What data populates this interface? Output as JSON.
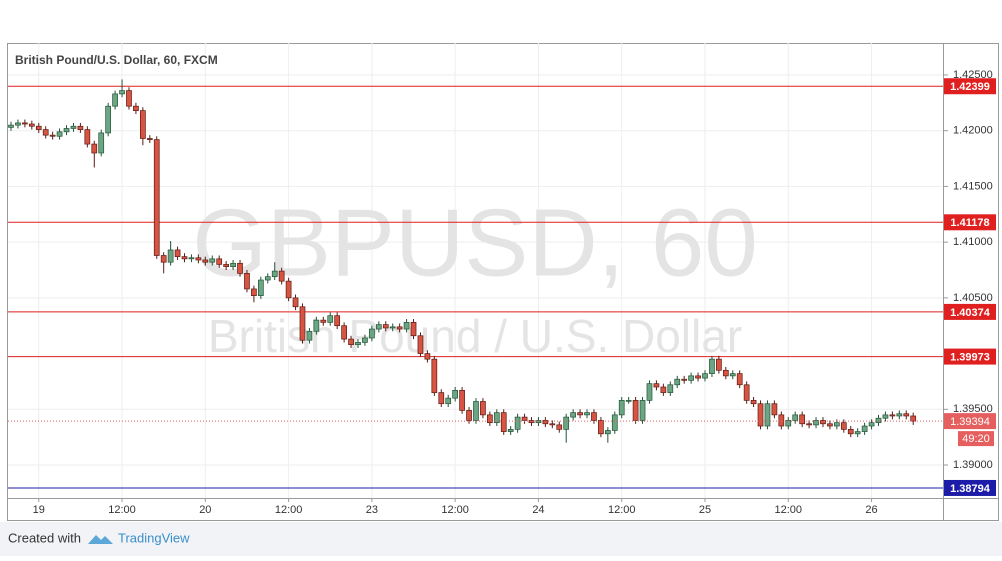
{
  "chart_data": {
    "type": "candlestick",
    "title": "British Pound/U.S. Dollar, 60, FXCM",
    "watermark": "GBPUSD, 60",
    "watermark_subtitle": "British Pound / U.S. Dollar",
    "categories": [
      null,
      null,
      null,
      null,
      "19",
      null,
      null,
      null,
      null,
      null,
      null,
      null,
      null,
      null,
      null,
      null,
      "12:00",
      null,
      null,
      null,
      null,
      null,
      null,
      null,
      null,
      null,
      null,
      null,
      "20",
      null,
      null,
      null,
      null,
      null,
      null,
      null,
      null,
      null,
      null,
      null,
      "12:00",
      null,
      null,
      null,
      null,
      null,
      null,
      null,
      null,
      null,
      null,
      null,
      "23",
      null,
      null,
      null,
      null,
      null,
      null,
      null,
      null,
      null,
      null,
      null,
      "12:00",
      null,
      null,
      null,
      null,
      null,
      null,
      null,
      null,
      null,
      null,
      null,
      "24",
      null,
      null,
      null,
      null,
      null,
      null,
      null,
      null,
      null,
      null,
      null,
      "12:00",
      null,
      null,
      null,
      null,
      null,
      null,
      null,
      null,
      null,
      null,
      null,
      "25",
      null,
      null,
      null,
      null,
      null,
      null,
      null,
      null,
      null,
      null,
      null,
      "12:00",
      null,
      null,
      null,
      null,
      null,
      null,
      null,
      null,
      null,
      null,
      null,
      "26",
      null,
      null,
      null,
      null,
      null,
      null
    ],
    "open": [
      1.4203,
      1.4205,
      1.4207,
      1.4206,
      1.4204,
      1.4201,
      1.4196,
      1.4195,
      1.4199,
      1.4202,
      1.4204,
      1.4201,
      1.4188,
      1.418,
      1.4198,
      1.4222,
      1.4233,
      1.4236,
      1.4222,
      1.4218,
      1.4193,
      1.4192,
      1.4088,
      1.4082,
      1.4093,
      1.4087,
      1.4085,
      1.4086,
      1.4084,
      1.4082,
      1.4085,
      1.408,
      1.4078,
      1.4081,
      1.4072,
      1.4058,
      1.4052,
      1.4066,
      1.4069,
      1.4074,
      1.4065,
      1.405,
      1.4042,
      1.4012,
      1.402,
      1.403,
      1.4028,
      1.4034,
      1.4025,
      1.4013,
      1.4008,
      1.401,
      1.4014,
      1.4022,
      1.4026,
      1.4023,
      1.4024,
      1.4022,
      1.4028,
      1.4016,
      1.4,
      1.3995,
      1.3965,
      1.3955,
      1.396,
      1.3967,
      1.3949,
      1.394,
      1.3957,
      1.3945,
      1.3938,
      1.3947,
      1.393,
      1.3932,
      1.3943,
      1.394,
      1.3938,
      1.394,
      1.3937,
      1.3936,
      1.3932,
      1.3943,
      1.3947,
      1.3945,
      1.3947,
      1.394,
      1.3928,
      1.3931,
      1.3945,
      1.3958,
      1.3958,
      1.394,
      1.3958,
      1.3973,
      1.397,
      1.3965,
      1.3972,
      1.3977,
      1.3976,
      1.398,
      1.3978,
      1.3982,
      1.3995,
      1.3985,
      1.398,
      1.3982,
      1.3972,
      1.3958,
      1.3955,
      1.3935,
      1.3955,
      1.3945,
      1.3935,
      1.394,
      1.3945,
      1.3937,
      1.3936,
      1.394,
      1.3937,
      1.3935,
      1.3938,
      1.3932,
      1.3928,
      1.393,
      1.3935,
      1.3938,
      1.3942,
      1.3945,
      1.3944,
      1.3946,
      1.3944
    ],
    "high": [
      1.4208,
      1.421,
      1.421,
      1.4209,
      1.4207,
      1.4204,
      1.4199,
      1.4202,
      1.4205,
      1.4207,
      1.4207,
      1.4204,
      1.4191,
      1.4201,
      1.4225,
      1.4236,
      1.4246,
      1.4239,
      1.4225,
      1.4221,
      1.4196,
      1.4195,
      1.4091,
      1.4101,
      1.4096,
      1.409,
      1.4089,
      1.4089,
      1.4087,
      1.4088,
      1.4088,
      1.4083,
      1.4084,
      1.4084,
      1.4075,
      1.4061,
      1.4069,
      1.4072,
      1.4082,
      1.4077,
      1.4068,
      1.4053,
      1.4045,
      1.4023,
      1.4033,
      1.4033,
      1.4037,
      1.4037,
      1.4028,
      1.4016,
      1.4013,
      1.4017,
      1.4025,
      1.4029,
      1.4029,
      1.4027,
      1.4027,
      1.4031,
      1.4031,
      1.4019,
      1.4003,
      1.3998,
      1.3968,
      1.3963,
      1.397,
      1.397,
      1.3952,
      1.396,
      1.396,
      1.3948,
      1.395,
      1.395,
      1.3935,
      1.3946,
      1.3946,
      1.3943,
      1.3943,
      1.3943,
      1.394,
      1.3939,
      1.3946,
      1.395,
      1.395,
      1.395,
      1.395,
      1.3943,
      1.3934,
      1.3948,
      1.3961,
      1.3961,
      1.3961,
      1.3961,
      1.3976,
      1.3976,
      1.3973,
      1.3975,
      1.398,
      1.398,
      1.3983,
      1.3983,
      1.3985,
      1.3998,
      1.3998,
      1.3988,
      1.3985,
      1.3985,
      1.3975,
      1.3961,
      1.3958,
      1.3958,
      1.3958,
      1.3948,
      1.3943,
      1.3948,
      1.3948,
      1.394,
      1.3943,
      1.3943,
      1.394,
      1.3941,
      1.3941,
      1.3935,
      1.3933,
      1.3938,
      1.3941,
      1.3945,
      1.3948,
      1.3948,
      1.3949,
      1.3949,
      1.3947
    ],
    "low": [
      1.42,
      1.4202,
      1.4203,
      1.4201,
      1.4198,
      1.4193,
      1.4192,
      1.4192,
      1.4196,
      1.4199,
      1.4198,
      1.4185,
      1.4167,
      1.4177,
      1.4195,
      1.4219,
      1.423,
      1.4219,
      1.4215,
      1.4187,
      1.4189,
      1.4085,
      1.4072,
      1.4079,
      1.4084,
      1.4082,
      1.4082,
      1.4081,
      1.4079,
      1.4079,
      1.4077,
      1.4075,
      1.4075,
      1.4069,
      1.4055,
      1.4046,
      1.4049,
      1.4063,
      1.4066,
      1.4062,
      1.4047,
      1.4039,
      1.4009,
      1.4009,
      1.4017,
      1.4025,
      1.4025,
      1.4022,
      1.401,
      1.4005,
      1.4005,
      1.4007,
      1.4011,
      1.4019,
      1.402,
      1.402,
      1.4019,
      1.4019,
      1.4013,
      1.3997,
      1.3992,
      1.3962,
      1.3952,
      1.3952,
      1.3957,
      1.3946,
      1.3937,
      1.3937,
      1.3942,
      1.3935,
      1.3935,
      1.3927,
      1.3927,
      1.3929,
      1.3937,
      1.3935,
      1.3935,
      1.3934,
      1.3933,
      1.3929,
      1.392,
      1.394,
      1.3942,
      1.3942,
      1.3937,
      1.3925,
      1.392,
      1.3928,
      1.3942,
      1.3955,
      1.3937,
      1.3937,
      1.3955,
      1.3967,
      1.3962,
      1.3962,
      1.3969,
      1.3973,
      1.3973,
      1.3975,
      1.3975,
      1.3979,
      1.3982,
      1.3977,
      1.3977,
      1.3969,
      1.3955,
      1.3952,
      1.3932,
      1.3932,
      1.3942,
      1.3932,
      1.3932,
      1.3937,
      1.3934,
      1.3933,
      1.3933,
      1.3934,
      1.3932,
      1.3932,
      1.3929,
      1.3925,
      1.3925,
      1.3927,
      1.3932,
      1.3935,
      1.3939,
      1.3941,
      1.3941,
      1.3941,
      1.3936
    ],
    "close": [
      1.4205,
      1.4207,
      1.4206,
      1.4204,
      1.4201,
      1.4196,
      1.4195,
      1.4199,
      1.4202,
      1.4204,
      1.4201,
      1.4188,
      1.418,
      1.4198,
      1.4222,
      1.4233,
      1.4236,
      1.4222,
      1.4218,
      1.4193,
      1.4192,
      1.4088,
      1.4082,
      1.4093,
      1.4087,
      1.4085,
      1.4086,
      1.4084,
      1.4082,
      1.4085,
      1.408,
      1.4078,
      1.4081,
      1.4072,
      1.4058,
      1.4052,
      1.4066,
      1.4069,
      1.4074,
      1.4065,
      1.405,
      1.4042,
      1.4012,
      1.402,
      1.403,
      1.4028,
      1.4034,
      1.4025,
      1.4013,
      1.4008,
      1.401,
      1.4014,
      1.4022,
      1.4026,
      1.4023,
      1.4024,
      1.4022,
      1.4028,
      1.4016,
      1.4,
      1.3995,
      1.3965,
      1.3955,
      1.396,
      1.3967,
      1.3949,
      1.394,
      1.3957,
      1.3945,
      1.3938,
      1.3947,
      1.393,
      1.3932,
      1.3943,
      1.394,
      1.3938,
      1.394,
      1.3937,
      1.3936,
      1.3932,
      1.3943,
      1.3947,
      1.3945,
      1.3947,
      1.394,
      1.3928,
      1.3931,
      1.3945,
      1.3958,
      1.3958,
      1.394,
      1.3958,
      1.3973,
      1.397,
      1.3965,
      1.3972,
      1.3977,
      1.3976,
      1.398,
      1.3978,
      1.3982,
      1.3995,
      1.3985,
      1.398,
      1.3982,
      1.3972,
      1.3958,
      1.3955,
      1.3935,
      1.3955,
      1.3945,
      1.3935,
      1.394,
      1.3945,
      1.3937,
      1.3936,
      1.394,
      1.3937,
      1.3935,
      1.3938,
      1.3932,
      1.3928,
      1.393,
      1.3935,
      1.3938,
      1.3942,
      1.3945,
      1.3944,
      1.3946,
      1.3944,
      1.39394
    ],
    "up_color": "#6ba583",
    "up_border": "#225437",
    "down_color": "#d75442",
    "down_border": "#5b1a13",
    "ylim": [
      1.38704,
      1.42787
    ],
    "yticks": [
      {
        "value": 1.39,
        "label": "1.39000"
      },
      {
        "value": 1.395,
        "label": "1.39500"
      },
      {
        "value": 1.405,
        "label": "1.40500"
      },
      {
        "value": 1.41,
        "label": "1.41000"
      },
      {
        "value": 1.415,
        "label": "1.41500"
      },
      {
        "value": 1.42,
        "label": "1.42000"
      },
      {
        "value": 1.425,
        "label": "1.42500"
      }
    ],
    "grid": true,
    "hlines": [
      {
        "value": 1.42399,
        "color": "#e01f1f"
      },
      {
        "value": 1.41178,
        "color": "#e01f1f"
      },
      {
        "value": 1.40374,
        "color": "#e01f1f"
      },
      {
        "value": 1.39973,
        "color": "#e01f1f"
      },
      {
        "value": 1.38794,
        "color": "#1c1ca8"
      }
    ],
    "last_price": 1.39394,
    "last_price_color": "#e65f5f",
    "countdown": "49:20"
  },
  "footer": {
    "text": "Created with",
    "brand": "TradingView"
  }
}
